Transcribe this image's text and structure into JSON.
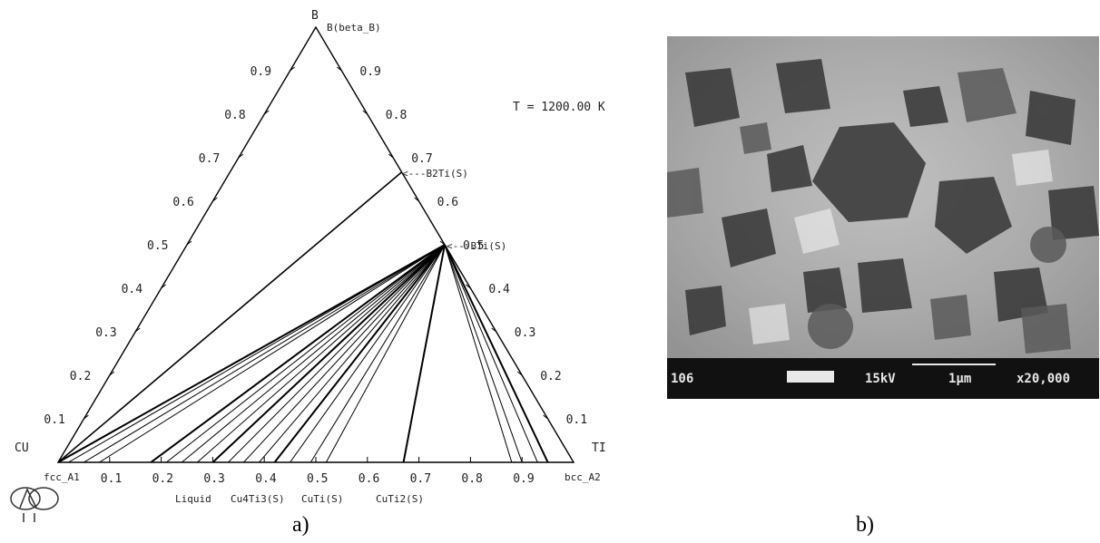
{
  "panel_a": {
    "caption": "a)",
    "temperature": "T = 1200.00 K",
    "corners": {
      "left": "CU",
      "top": "B",
      "right": "TI"
    },
    "top_phase": "B(beta_B)",
    "left_phase": "fcc_A1",
    "right_phase": "bcc_A2",
    "phase_labels": {
      "b2ti": "<---B2Ti(S)",
      "bti": "<---BTi(S)"
    },
    "bottom_phases": [
      "Liquid",
      "Cu4Ti3(S)",
      "CuTi(S)",
      "CuTi2(S)"
    ],
    "left_ticks": [
      "0.9",
      "0.8",
      "0.7",
      "0.6",
      "0.5",
      "0.4",
      "0.3",
      "0.2",
      "0.1"
    ],
    "right_ticks": [
      "0.9",
      "0.8",
      "0.7",
      "0.6",
      "0.5",
      "0.4",
      "0.3",
      "0.2",
      "0.1"
    ],
    "bottom_ticks": [
      "0.1",
      "0.2",
      "0.3",
      "0.4",
      "0.5",
      "0.6",
      "0.7",
      "0.8",
      "0.9"
    ],
    "tie_line_origin_fraction": 0.5,
    "tie_line_bottom_x_fractions": [
      0.0,
      0.02,
      0.05,
      0.08,
      0.18,
      0.21,
      0.24,
      0.27,
      0.3,
      0.33,
      0.36,
      0.39,
      0.42,
      0.45,
      0.49,
      0.52,
      0.67,
      0.88,
      0.9,
      0.93,
      0.95
    ],
    "b2ti_fraction": 0.667
  },
  "panel_b": {
    "caption": "b)",
    "sem_id": "106",
    "voltage": "15kV",
    "scale": "1μm",
    "magnification": "x20,000"
  }
}
